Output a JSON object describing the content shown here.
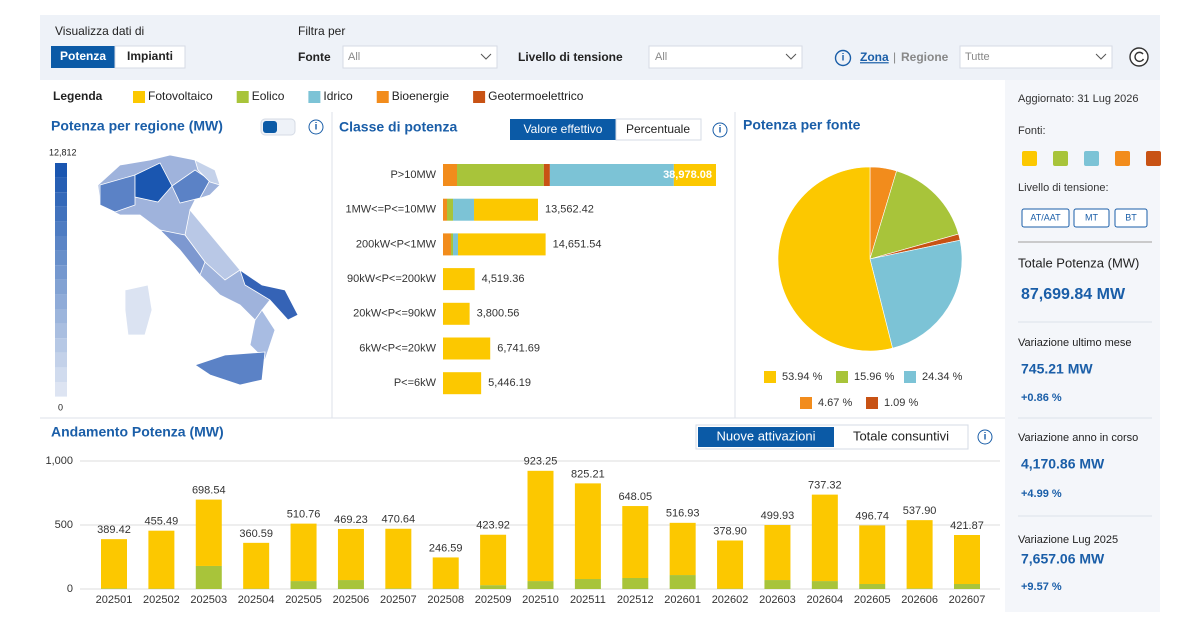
{
  "header": {
    "view_label": "Visualizza dati di",
    "view_options": [
      "Potenza",
      "Impianti"
    ],
    "filter_label": "Filtra per",
    "source_label": "Fonte",
    "source_value": "All",
    "voltage_label": "Livello di tensione",
    "voltage_value": "All",
    "zone_options": [
      "Zona",
      "Regione"
    ],
    "zone_separator": "|",
    "zone_value": "Tutte",
    "info_icon": "i"
  },
  "legend": {
    "title": "Legenda",
    "items": [
      {
        "name": "Fotovoltaico",
        "color": "#fcc800"
      },
      {
        "name": "Eolico",
        "color": "#a8c43a"
      },
      {
        "name": "Idrico",
        "color": "#7cc3d6"
      },
      {
        "name": "Bioenergie",
        "color": "#f28c1c"
      },
      {
        "name": "Geotermoelettrico",
        "color": "#c85214"
      }
    ]
  },
  "map": {
    "title": "Potenza per regione (MW)",
    "scale_max_label": "12,812",
    "scale_min_label": "0"
  },
  "chart_data": [
    {
      "type": "stacked-barh",
      "title": "Classe di potenza",
      "toggle": [
        "Valore effettivo",
        "Percentuale"
      ],
      "categories": [
        "P>10MW",
        "1MW<=P<=10MW",
        "200kW<P<1MW",
        "90kW<P<=200kW",
        "20kW<P<=90kW",
        "6kW<P<=20kW",
        "P<=6kW"
      ],
      "series": [
        {
          "color": "#f28c1c",
          "values": [
            2000,
            570,
            1140,
            0,
            0,
            0,
            0
          ]
        },
        {
          "color": "#a8c43a",
          "values": [
            12400,
            860,
            290,
            0,
            0,
            0,
            0
          ]
        },
        {
          "color": "#c85214",
          "values": [
            860,
            0,
            0,
            0,
            0,
            0,
            0
          ]
        },
        {
          "color": "#7cc3d6",
          "values": [
            17700,
            3000,
            710,
            0,
            0,
            0,
            0
          ]
        },
        {
          "color": "#fcc800",
          "values": [
            6018.08,
            9132.42,
            12511.54,
            4519.36,
            3800.56,
            6741.69,
            5446.19
          ]
        }
      ],
      "totals": [
        38978.08,
        13562.42,
        14651.54,
        4519.36,
        3800.56,
        6741.69,
        5446.19
      ],
      "total_labels": [
        "38,978.08",
        "13,562.42",
        "14,651.54",
        "4,519.36",
        "3,800.56",
        "6,741.69",
        "5,446.19"
      ]
    },
    {
      "type": "pie",
      "title": "Potenza per fonte",
      "values": [
        4.67,
        15.96,
        1.09,
        24.34,
        53.94
      ],
      "value_labels": [
        "4.67 %",
        "15.96 %",
        "1.09 %",
        "24.34 %",
        "53.94 %"
      ],
      "colors": [
        "#f28c1c",
        "#a8c43a",
        "#c85214",
        "#7cc3d6",
        "#fcc800"
      ]
    },
    {
      "type": "stacked-bar",
      "title": "Andamento Potenza (MW)",
      "toggle": [
        "Nuove attivazioni",
        "Totale consuntivi"
      ],
      "categories": [
        "202501",
        "202502",
        "202503",
        "202504",
        "202505",
        "202506",
        "202507",
        "202508",
        "202509",
        "202510",
        "202511",
        "202512",
        "202601",
        "202602",
        "202603",
        "202604",
        "202605",
        "202606",
        "202607"
      ],
      "series": [
        {
          "color": "#a8c43a",
          "values": [
            5,
            3,
            180,
            3,
            62,
            70,
            5,
            3,
            30,
            62,
            78,
            86,
            109,
            3,
            70,
            62,
            39,
            5,
            39
          ]
        },
        {
          "color": "#fcc800",
          "values": [
            384.42,
            452.49,
            518.54,
            357.59,
            448.76,
            399.23,
            465.64,
            243.59,
            393.92,
            861.25,
            747.21,
            562.05,
            407.93,
            375.9,
            429.93,
            675.32,
            457.74,
            532.9,
            382.87
          ]
        }
      ],
      "totals": [
        389.42,
        455.49,
        698.54,
        360.59,
        510.76,
        469.23,
        470.64,
        246.59,
        423.92,
        923.25,
        825.21,
        648.05,
        516.93,
        378.9,
        499.93,
        737.32,
        496.74,
        537.9,
        421.87
      ],
      "total_labels": [
        "389.42",
        "455.49",
        "698.54",
        "360.59",
        "510.76",
        "469.23",
        "470.64",
        "246.59",
        "423.92",
        "923.25",
        "825.21",
        "648.05",
        "516.93",
        "378.90",
        "499.93",
        "737.32",
        "496.74",
        "537.90",
        "421.87"
      ],
      "ylim": [
        0,
        1000
      ],
      "yticks": [
        0,
        500,
        {
          "value": 1000,
          "label": "1,000"
        }
      ],
      "grid": true
    }
  ],
  "sidebar": {
    "updated": "Aggiornato: 31 Lug 2026",
    "sources_label": "Fonti:",
    "voltage_label": "Livello di tensione:",
    "voltage_options": [
      "AT/AAT",
      "MT",
      "BT"
    ],
    "kpis": [
      {
        "label": "Totale Potenza (MW)",
        "value": "87,699.84 MW"
      },
      {
        "label": "Variazione ultimo mese",
        "value": "745.21 MW",
        "change": "+0.86 %"
      },
      {
        "label": "Variazione anno in corso",
        "value": "4,170.86 MW",
        "change": "+4.99 %"
      },
      {
        "label": "Variazione Lug 2025",
        "value": "7,657.06 MW",
        "change": "+9.57 %"
      }
    ]
  }
}
